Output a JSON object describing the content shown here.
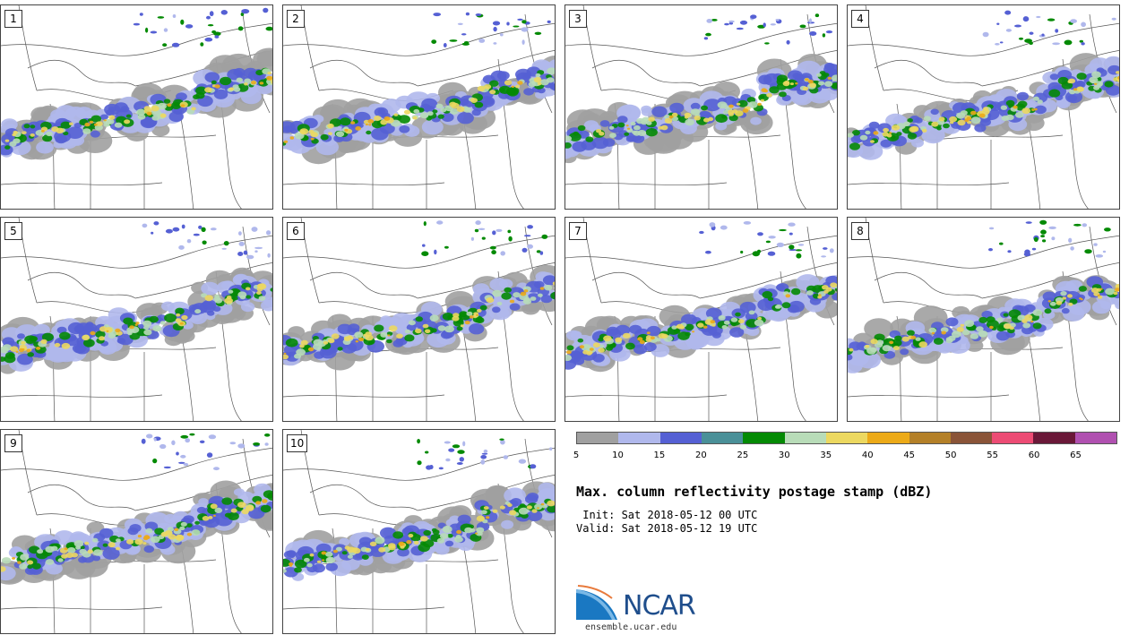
{
  "panels": [
    {
      "label": "1"
    },
    {
      "label": "2"
    },
    {
      "label": "3"
    },
    {
      "label": "4"
    },
    {
      "label": "5"
    },
    {
      "label": "6"
    },
    {
      "label": "7"
    },
    {
      "label": "8"
    },
    {
      "label": "9"
    },
    {
      "label": "10"
    }
  ],
  "colorbar": {
    "colors": [
      "#a0a0a0",
      "#b0b8ec",
      "#5560d4",
      "#4a9098",
      "#048a04",
      "#b8dcb8",
      "#ecd860",
      "#ecaa18",
      "#b48028",
      "#8a5438",
      "#ec4c74",
      "#6a1838",
      "#b050b0"
    ],
    "ticks": [
      "5",
      "10",
      "15",
      "20",
      "25",
      "30",
      "35",
      "40",
      "45",
      "50",
      "55",
      "60",
      "65"
    ]
  },
  "title": "Max. column reflectivity postage stamp (dBZ)",
  "init_line": " Init: Sat 2018-05-12 00 UTC",
  "valid_line": "Valid: Sat 2018-05-12 19 UTC",
  "logo": {
    "name": "NCAR",
    "url": "ensemble.ucar.edu"
  }
}
